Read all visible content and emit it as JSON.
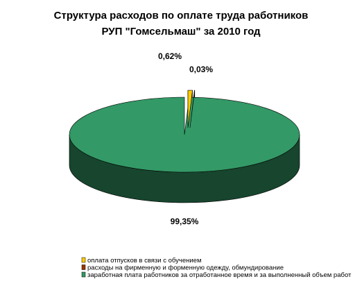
{
  "chart_data": {
    "type": "pie",
    "title_lines": [
      "Структура расходов по оплате труда работников",
      "РУП \"Гомсельмаш\" за 2010 год"
    ],
    "slices": [
      {
        "label": "оплата отпусков в связи с обучением",
        "value": 0.62,
        "display": "0,62%",
        "color": "#ffcc00"
      },
      {
        "label": "расходы на фирменную и форменную одежду, обмундирование",
        "value": 0.03,
        "display": "0,03%",
        "color": "#993300"
      },
      {
        "label": "заработная плата работников за отработанное время и за выполненный объем работ",
        "value": 99.35,
        "display": "99,35%",
        "color": "#339966"
      }
    ],
    "style": "3d-exploded",
    "legend_position": "bottom-left"
  }
}
